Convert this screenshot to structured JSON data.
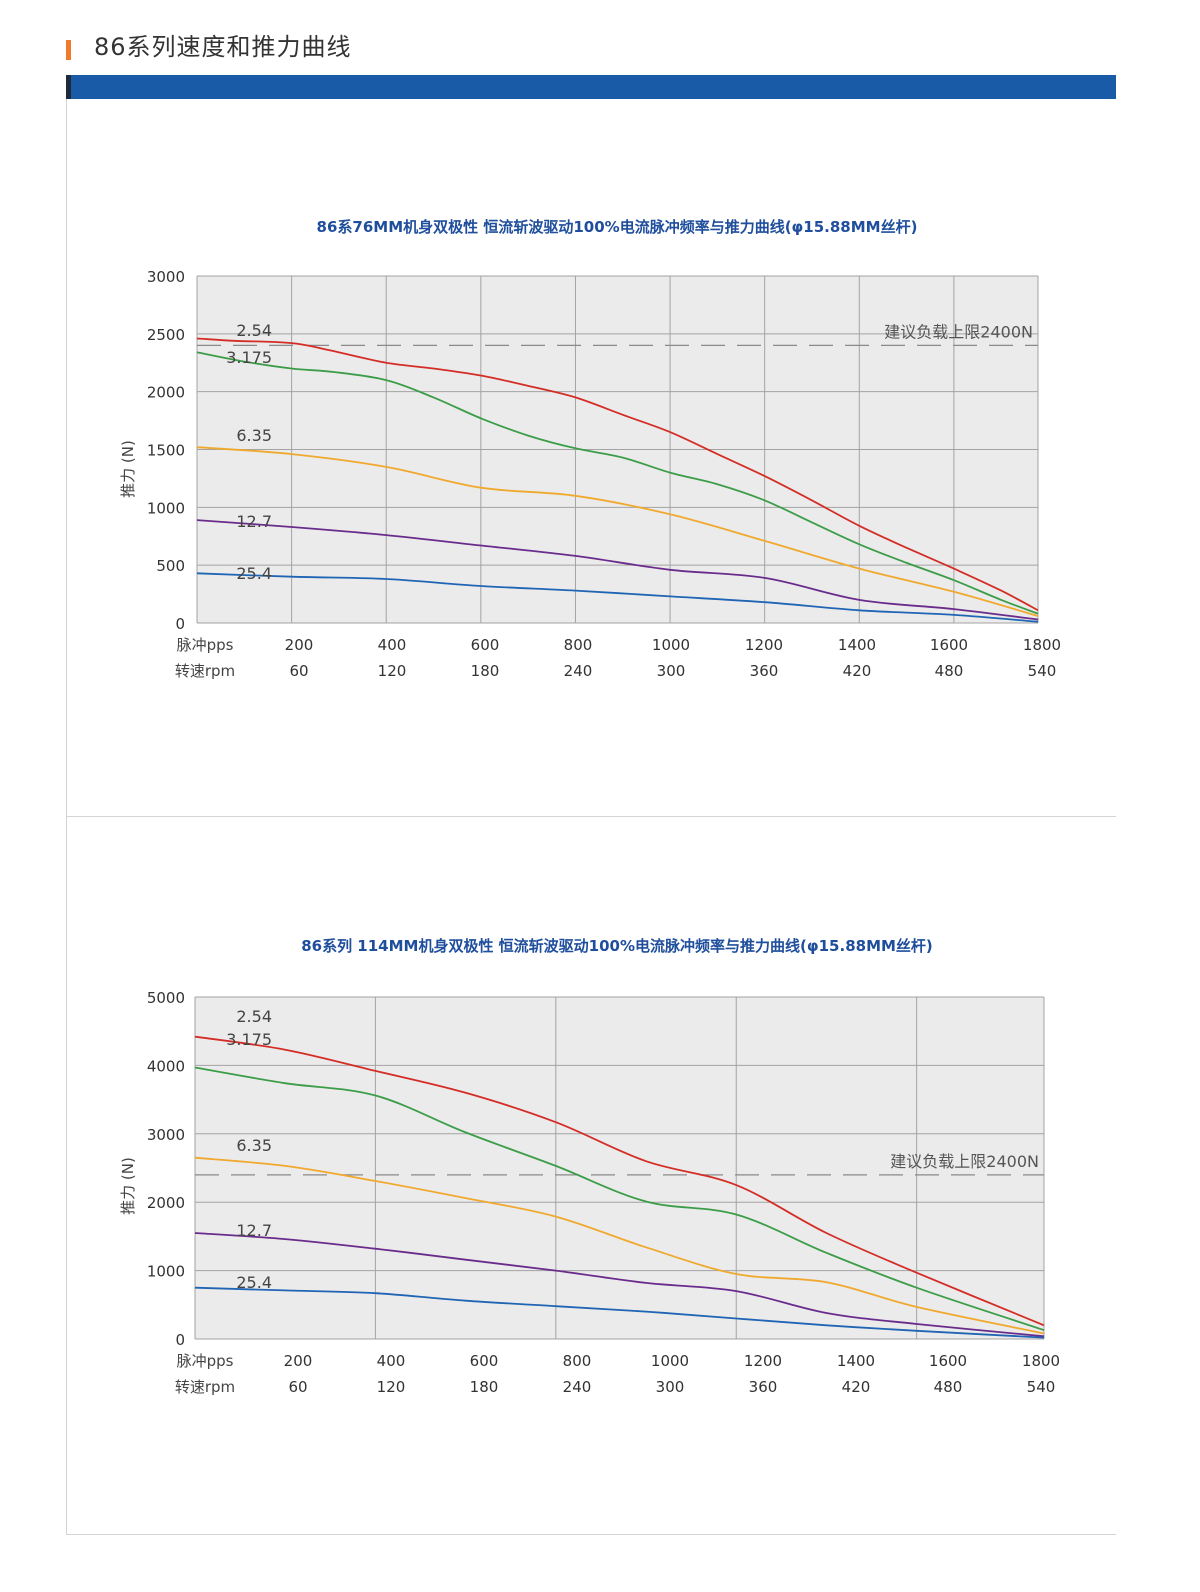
{
  "header": {
    "title": "86系列速度和推力曲线",
    "marker_color": "#f07a2a",
    "bar_color": "#1a5ba8"
  },
  "colors": {
    "2.54": "#d42d26",
    "3.175": "#3c9d48",
    "6.35": "#f0a92e",
    "12.7": "#6a2c8c",
    "25.4": "#2065b4",
    "title": "#1f4e9c",
    "plot_bg": "#ebebeb",
    "grid": "#a3a3a3"
  },
  "chart_data": [
    {
      "type": "line",
      "title": "86系76MM机身双极性 恒流斩波驱动100%电流脉冲频率与推力曲线(φ15.88MM丝杆)",
      "ylabel": "推力 (N)",
      "ylim": [
        0,
        3000
      ],
      "yticks": [
        "0",
        "500",
        "1000",
        "1500",
        "2000",
        "2500",
        "3000"
      ],
      "x_row_labels": [
        "脉冲pps",
        "转速rpm"
      ],
      "x_pps": [
        "200",
        "400",
        "600",
        "800",
        "1000",
        "1200",
        "1400",
        "1600",
        "1800"
      ],
      "x_rpm": [
        "60",
        "120",
        "180",
        "240",
        "300",
        "360",
        "420",
        "480",
        "540"
      ],
      "xlim": [
        200,
        1800
      ],
      "x_gridlines": [
        200,
        380,
        560,
        740,
        920,
        1100,
        1280,
        1460,
        1640,
        1800
      ],
      "reference_line": {
        "value": 2400,
        "label": "建议负载上限2400N"
      },
      "grid": true,
      "series": [
        {
          "name": "2.54",
          "x": [
            200,
            270,
            380,
            450,
            560,
            650,
            740,
            830,
            920,
            1010,
            1100,
            1190,
            1280,
            1370,
            1460,
            1550,
            1640,
            1730,
            1800
          ],
          "values": [
            2460,
            2440,
            2420,
            2360,
            2250,
            2200,
            2140,
            2050,
            1950,
            1800,
            1650,
            1460,
            1270,
            1060,
            840,
            650,
            470,
            280,
            110
          ]
        },
        {
          "name": "3.175",
          "x": [
            200,
            290,
            380,
            460,
            560,
            650,
            740,
            830,
            920,
            1010,
            1100,
            1190,
            1280,
            1370,
            1460,
            1550,
            1640,
            1730,
            1800
          ],
          "values": [
            2340,
            2260,
            2200,
            2170,
            2100,
            1950,
            1770,
            1620,
            1510,
            1430,
            1300,
            1200,
            1060,
            870,
            680,
            520,
            370,
            200,
            80
          ]
        },
        {
          "name": "6.35",
          "x": [
            200,
            380,
            560,
            740,
            920,
            1100,
            1280,
            1460,
            1640,
            1800
          ],
          "values": [
            1520,
            1460,
            1350,
            1170,
            1100,
            940,
            710,
            470,
            270,
            60
          ]
        },
        {
          "name": "12.7",
          "x": [
            200,
            380,
            560,
            740,
            920,
            1100,
            1280,
            1460,
            1640,
            1800
          ],
          "values": [
            890,
            830,
            760,
            670,
            580,
            460,
            390,
            200,
            120,
            30
          ]
        },
        {
          "name": "25.4",
          "x": [
            200,
            380,
            560,
            740,
            920,
            1100,
            1280,
            1460,
            1640,
            1800
          ],
          "values": [
            430,
            400,
            380,
            320,
            280,
            230,
            180,
            110,
            70,
            10
          ]
        }
      ]
    },
    {
      "type": "line",
      "title": "86系列 114MM机身双极性 恒流斩波驱动100%电流脉冲频率与推力曲线(φ15.88MM丝杆)",
      "ylabel": "推力 (N)",
      "ylim": [
        0,
        5000
      ],
      "yticks": [
        "0",
        "1000",
        "2000",
        "3000",
        "4000",
        "5000"
      ],
      "x_row_labels": [
        "脉冲pps",
        "转速rpm"
      ],
      "x_pps": [
        "200",
        "400",
        "600",
        "800",
        "1000",
        "1200",
        "1400",
        "1600",
        "1800"
      ],
      "x_rpm": [
        "60",
        "120",
        "180",
        "240",
        "300",
        "360",
        "420",
        "480",
        "540"
      ],
      "xlim": [
        200,
        1800
      ],
      "x_gridlines": [
        200,
        540,
        880,
        1220,
        1560,
        1800
      ],
      "reference_line": {
        "value": 2400,
        "label": "建议负载上限2400N"
      },
      "grid": true,
      "series": [
        {
          "name": "2.54",
          "x": [
            200,
            370,
            540,
            710,
            880,
            1050,
            1220,
            1390,
            1560,
            1800
          ],
          "values": [
            4420,
            4230,
            3920,
            3600,
            3170,
            2600,
            2250,
            1550,
            970,
            200
          ]
        },
        {
          "name": "3.175",
          "x": [
            200,
            370,
            540,
            710,
            880,
            1050,
            1220,
            1390,
            1560,
            1800
          ],
          "values": [
            3970,
            3740,
            3560,
            3020,
            2530,
            2010,
            1820,
            1260,
            750,
            130
          ]
        },
        {
          "name": "6.35",
          "x": [
            200,
            370,
            540,
            710,
            880,
            1050,
            1220,
            1390,
            1560,
            1800
          ],
          "values": [
            2650,
            2530,
            2310,
            2060,
            1790,
            1340,
            950,
            830,
            470,
            80
          ]
        },
        {
          "name": "12.7",
          "x": [
            200,
            370,
            540,
            710,
            880,
            1050,
            1220,
            1390,
            1560,
            1800
          ],
          "values": [
            1550,
            1460,
            1320,
            1160,
            1000,
            820,
            700,
            380,
            220,
            40
          ]
        },
        {
          "name": "25.4",
          "x": [
            200,
            370,
            540,
            710,
            880,
            1050,
            1220,
            1390,
            1560,
            1800
          ],
          "values": [
            750,
            710,
            670,
            560,
            480,
            400,
            300,
            200,
            120,
            20
          ]
        }
      ]
    }
  ]
}
